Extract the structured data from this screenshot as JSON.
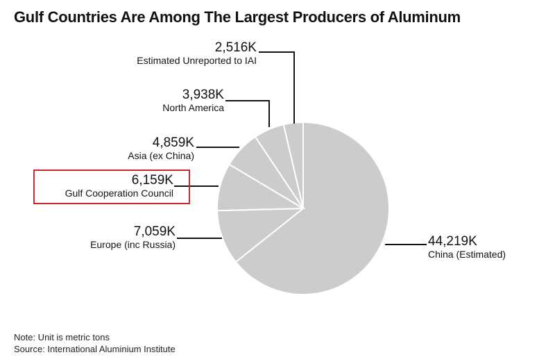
{
  "title": "Gulf Countries Are Among The Largest Producers of Aluminum",
  "chart_data": {
    "type": "pie",
    "unit": "K",
    "start": "top, clockwise",
    "slice_color": "#cccccc",
    "highlight_color": "#c8282e",
    "highlighted": "Gulf Cooperation Council",
    "slices": [
      {
        "label": "China (Estimated)",
        "value": 44219,
        "value_label": "44,219K"
      },
      {
        "label": "Europe (inc Russia)",
        "value": 7059,
        "value_label": "7,059K"
      },
      {
        "label": "Gulf Cooperation Council",
        "value": 6159,
        "value_label": "6,159K"
      },
      {
        "label": "Asia (ex China)",
        "value": 4859,
        "value_label": "4,859K"
      },
      {
        "label": "North America",
        "value": 3938,
        "value_label": "3,938K"
      },
      {
        "label": "Estimated Unreported to IAI",
        "value": 2516,
        "value_label": "2,516K"
      }
    ]
  },
  "note": "Note: Unit is metric tons",
  "source": "Source: International Aluminium Institute"
}
